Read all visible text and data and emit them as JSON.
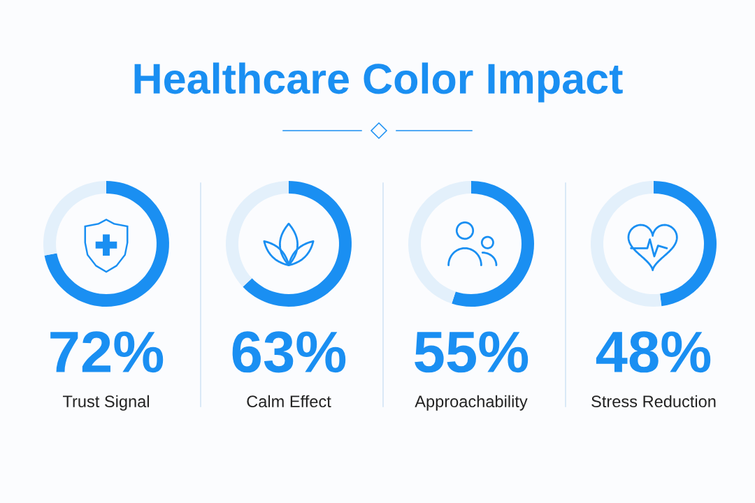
{
  "chart_data": [
    {
      "type": "donut",
      "title": "Healthcare Color Impact",
      "xlabel": "Trust Signal",
      "categories": [
        null,
        null
      ],
      "values": [
        72,
        28
      ],
      "colors": [
        "#1a8ff2",
        "#e3f0fb"
      ],
      "value_labels": [
        "72%",
        null
      ]
    },
    {
      "type": "donut",
      "xlabel": "Calm Effect",
      "categories": [
        null,
        null
      ],
      "values": [
        63,
        37
      ],
      "colors": [
        "#1a8ff2",
        "#e3f0fb"
      ],
      "value_labels": [
        "63%",
        null
      ]
    },
    {
      "type": "donut",
      "xlabel": "Approachability",
      "categories": [
        null,
        null
      ],
      "values": [
        55,
        45
      ],
      "colors": [
        "#1a8ff2",
        "#e3f0fb"
      ],
      "value_labels": [
        "55%",
        null
      ]
    },
    {
      "type": "donut",
      "xlabel": "Stress Reduction",
      "categories": [
        null,
        null
      ],
      "values": [
        48,
        52
      ],
      "colors": [
        "#1a8ff2",
        "#e3f0fb"
      ],
      "value_labels": [
        "48%",
        null
      ]
    }
  ]
}
